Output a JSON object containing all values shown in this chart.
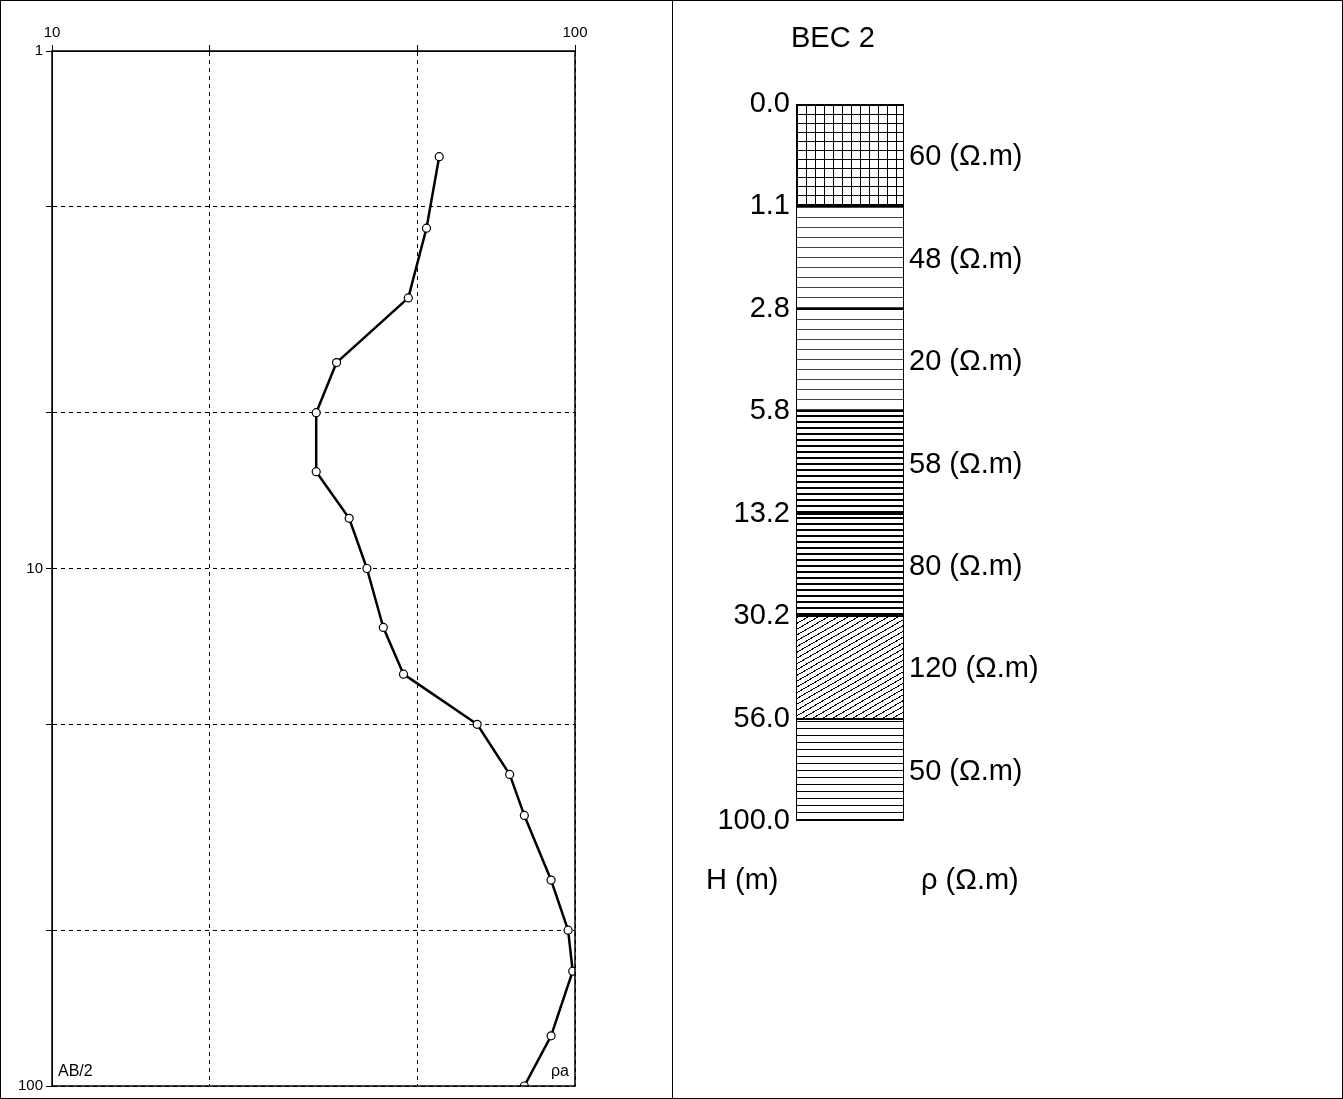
{
  "chart_data": [
    {
      "type": "line",
      "orientation": "horizontal",
      "xlabel": "ρa",
      "ylabel": "AB/2",
      "log": "xy",
      "grid": true,
      "legend": false,
      "marker": "circle",
      "x": [
        1.6,
        2.2,
        3,
        4,
        5,
        6.5,
        8,
        10,
        13,
        16,
        20,
        25,
        30,
        40,
        50,
        60,
        80,
        100
      ],
      "series": [
        {
          "color": "#000000",
          "values": [
            55,
            52,
            48,
            35,
            32,
            32,
            37,
            40,
            43,
            47,
            65,
            75,
            80,
            90,
            97,
            99,
            90,
            80
          ]
        }
      ],
      "xlim": [
        10,
        100
      ],
      "xticks": [
        10,
        {
          "value": 20,
          "label": null
        },
        {
          "value": 50,
          "label": null
        },
        100
      ],
      "ylim": [
        100,
        1
      ],
      "yticks": [
        1,
        {
          "value": 2,
          "label": null
        },
        {
          "value": 5,
          "label": null
        },
        10,
        {
          "value": 20,
          "label": null
        },
        {
          "value": 50,
          "label": null
        },
        100
      ]
    },
    {
      "type": "other",
      "title": "BEC 2",
      "ylabel": "H (m)",
      "xlabel": "ρ (Ω.m)",
      "categories": [
        "0.0",
        "1.1",
        "2.8",
        "5.8",
        "13.2",
        "30.2",
        "56.0",
        "100.0"
      ],
      "annotations": [
        "60 (Ω.m)",
        "48 (Ω.m)",
        "20 (Ω.m)",
        "58 (Ω.m)",
        "80 (Ω.m)",
        "120 (Ω.m)",
        "50 (Ω.m)"
      ]
    }
  ]
}
